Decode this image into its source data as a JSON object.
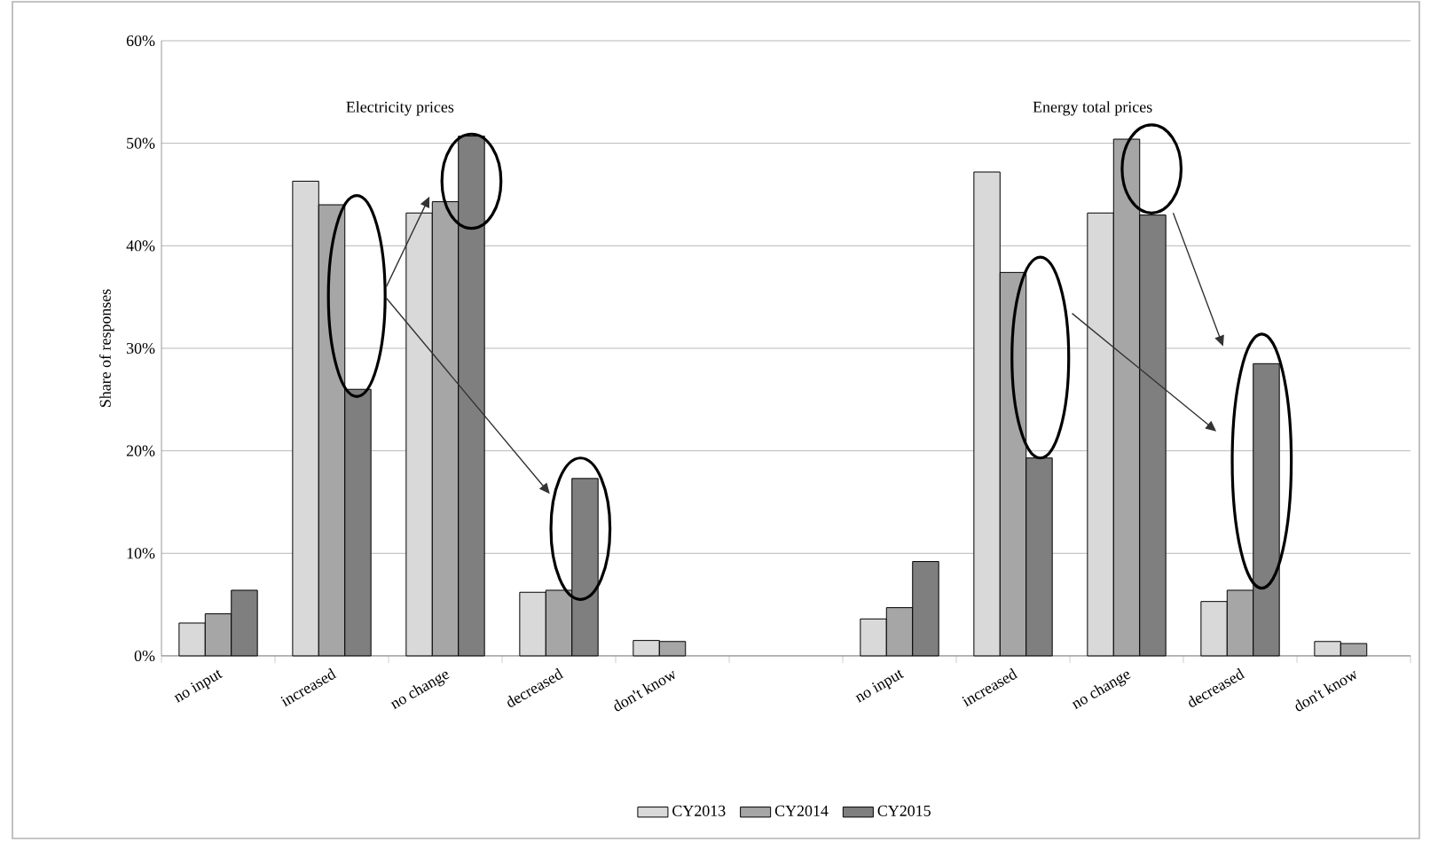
{
  "chart_data": {
    "type": "bar",
    "ylabel": "Share of responses",
    "categories": [
      "no input",
      "increased",
      "no change",
      "decreased",
      "don't know",
      null,
      "no input",
      "increased",
      "no change",
      "decreased",
      "don't know"
    ],
    "series": [
      {
        "name": "CY2013",
        "color": "#d9d9d9",
        "values": [
          3.2,
          46.3,
          43.2,
          6.2,
          1.5,
          null,
          3.6,
          47.2,
          43.2,
          5.3,
          1.4
        ]
      },
      {
        "name": "CY2014",
        "color": "#a6a6a6",
        "values": [
          4.1,
          44.0,
          44.3,
          6.4,
          1.4,
          null,
          4.7,
          37.4,
          50.4,
          6.4,
          1.2
        ]
      },
      {
        "name": "CY2015",
        "color": "#7f7f7f",
        "values": [
          6.4,
          26,
          50.7,
          17.3,
          null,
          null,
          9.2,
          19.3,
          43,
          28.5,
          null
        ]
      }
    ],
    "annotations": [
      "Electricity prices",
      "Energy total prices"
    ],
    "ylim": [
      0,
      60
    ],
    "yticks": [
      {
        "value": 0,
        "label": "0%"
      },
      {
        "value": 10,
        "label": "10%"
      },
      {
        "value": 20,
        "label": "20%"
      },
      {
        "value": 30,
        "label": "30%"
      },
      {
        "value": 40,
        "label": "40%"
      },
      {
        "value": 50,
        "label": "50%"
      },
      {
        "value": 60,
        "label": "60%"
      }
    ],
    "grid": "y",
    "legend": "bottom"
  }
}
